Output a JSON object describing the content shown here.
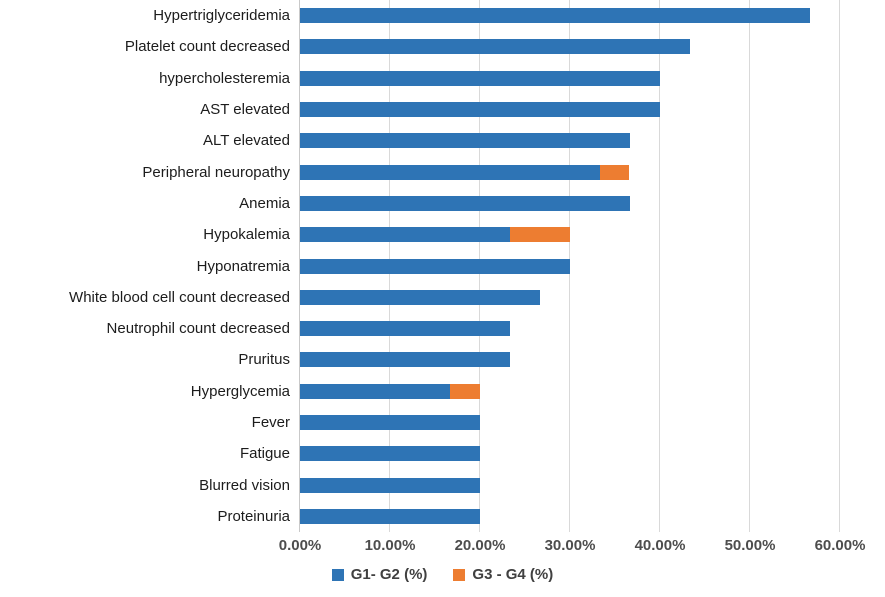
{
  "chart_data": {
    "type": "bar",
    "orientation": "horizontal",
    "stacked": true,
    "title": "",
    "xlabel": "",
    "ylabel": "",
    "xlim": [
      0,
      60
    ],
    "grid": "vertical",
    "legend_position": "bottom",
    "x_ticks": [
      "0.00%",
      "10.00%",
      "20.00%",
      "30.00%",
      "40.00%",
      "50.00%",
      "60.00%"
    ],
    "x_tick_values": [
      0,
      10,
      20,
      30,
      40,
      50,
      60
    ],
    "categories": [
      "Hypertriglyceridemia",
      "Platelet count decreased",
      "hypercholesteremia",
      "AST elevated",
      "ALT elevated",
      "Peripheral neuropathy",
      "Anemia",
      "Hypokalemia",
      "Hyponatremia",
      "White blood cell count decreased",
      "Neutrophil count decreased",
      "Pruritus",
      "Hyperglycemia",
      "Fever",
      "Fatigue",
      "Blurred vision",
      "Proteinuria"
    ],
    "series": [
      {
        "name": "G1- G2 (%)",
        "color": "#2e74b5",
        "values": [
          56.7,
          43.3,
          40.0,
          40.0,
          36.7,
          33.3,
          36.7,
          23.3,
          30.0,
          26.7,
          23.3,
          23.3,
          16.7,
          20.0,
          20.0,
          20.0,
          20.0
        ]
      },
      {
        "name": "G3 - G4 (%)",
        "color": "#ed7d31",
        "values": [
          0,
          0,
          0,
          0,
          0,
          3.3,
          0,
          6.7,
          0,
          0,
          0,
          0,
          3.3,
          0,
          0,
          0,
          0
        ]
      }
    ]
  },
  "style": {
    "gridline_color": "#d9d9d9",
    "axis_line_color": "#c9c9c9",
    "tick_label_color": "#4d4d4d",
    "category_label_color": "#1c1c1c",
    "legend_text_color": "#404040"
  }
}
